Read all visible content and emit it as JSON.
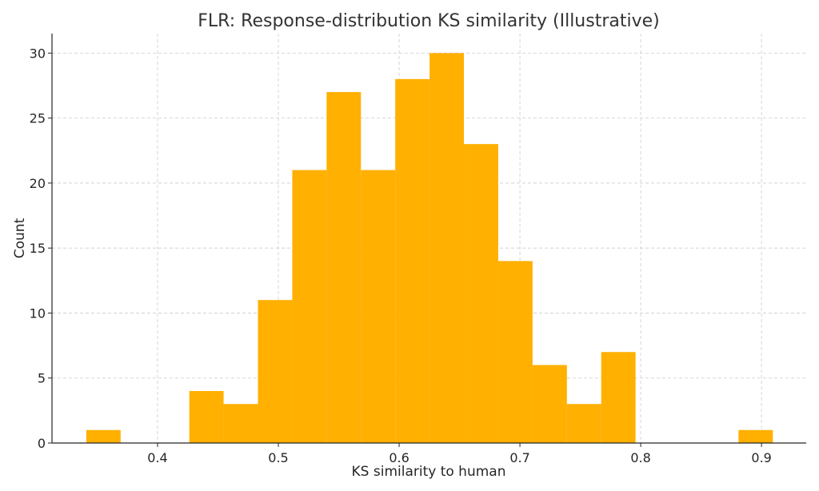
{
  "chart_data": {
    "type": "bar",
    "subtype": "histogram",
    "title": "FLR: Response-distribution KS similarity (Illustrative)",
    "xlabel": "KS similarity to human",
    "ylabel": "Count",
    "bin_start": 0.341,
    "bin_width": 0.02842,
    "counts": [
      1,
      0,
      0,
      4,
      3,
      11,
      21,
      27,
      21,
      28,
      30,
      23,
      14,
      6,
      3,
      7,
      0,
      0,
      0,
      1
    ],
    "xlim": [
      0.3126,
      0.937
    ],
    "ylim": [
      0,
      31.5
    ],
    "xticks": [
      0.4,
      0.5,
      0.6,
      0.7,
      0.8,
      0.9
    ],
    "xtick_labels": [
      "0.4",
      "0.5",
      "0.6",
      "0.7",
      "0.8",
      "0.9"
    ],
    "yticks": [
      0,
      5,
      10,
      15,
      20,
      25,
      30
    ],
    "ytick_labels": [
      "0",
      "5",
      "10",
      "15",
      "20",
      "25",
      "30"
    ],
    "grid": true,
    "bar_color": "#FFB000",
    "grid_color": "#cccccc"
  }
}
